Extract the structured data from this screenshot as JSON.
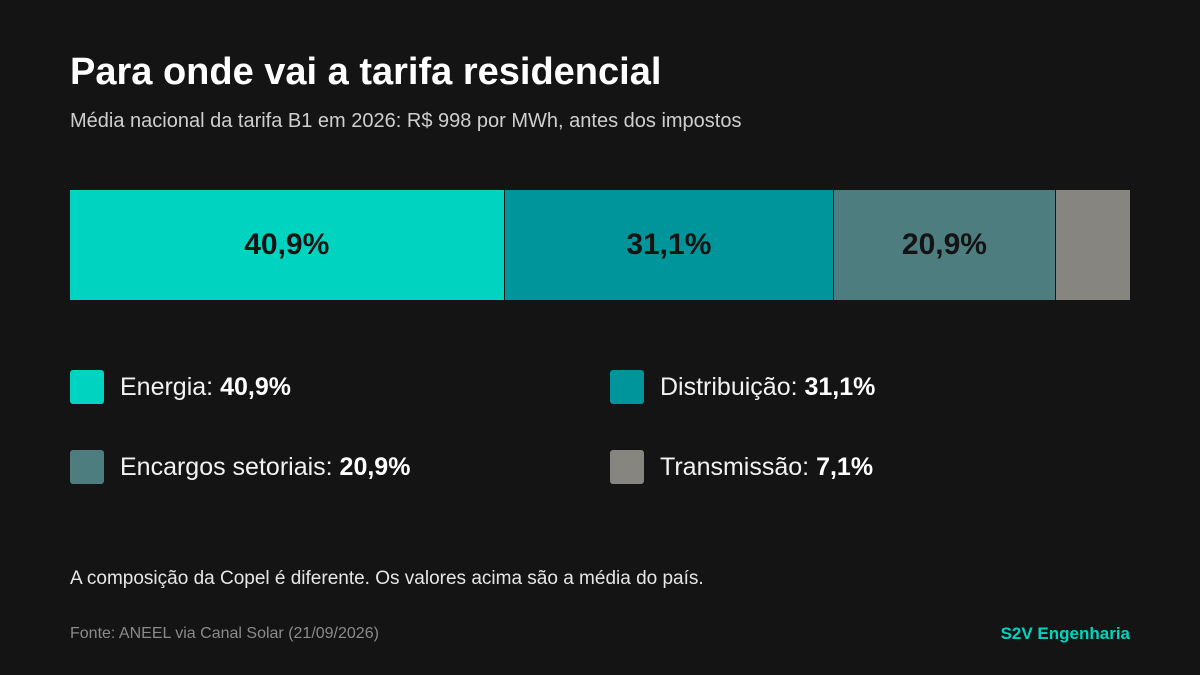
{
  "title": "Para onde vai a tarifa residencial",
  "subtitle": "Média nacional da tarifa B1 em 2026: R$ 998 por MWh, antes dos impostos",
  "note": "A composição da Copel é diferente. Os valores acima são a média do país.",
  "source": "Fonte: ANEEL via Canal Solar (21/09/2026)",
  "brand": "S2V Engenharia",
  "chart_data": {
    "type": "bar",
    "orientation": "horizontal-stacked-100",
    "categories": [
      "Energia",
      "Distribuição",
      "Encargos setoriais",
      "Transmissão"
    ],
    "values": [
      40.9,
      31.1,
      20.9,
      7.1
    ],
    "value_labels": [
      "40,9%",
      "31,1%",
      "20,9%",
      "7,1%"
    ],
    "bar_labels": [
      "40,9%",
      "31,1%",
      "20,9%",
      ""
    ],
    "colors": [
      "#00d4c0",
      "#00959a",
      "#4e7d80",
      "#86857f"
    ],
    "legend": [
      {
        "label": "Energia:",
        "value": "40,9%"
      },
      {
        "label": "Distribuição:",
        "value": "31,1%"
      },
      {
        "label": "Encargos setoriais:",
        "value": "20,9%"
      },
      {
        "label": "Transmissão:",
        "value": "7,1%"
      }
    ],
    "legend_placement": "bottom",
    "grid": false
  }
}
